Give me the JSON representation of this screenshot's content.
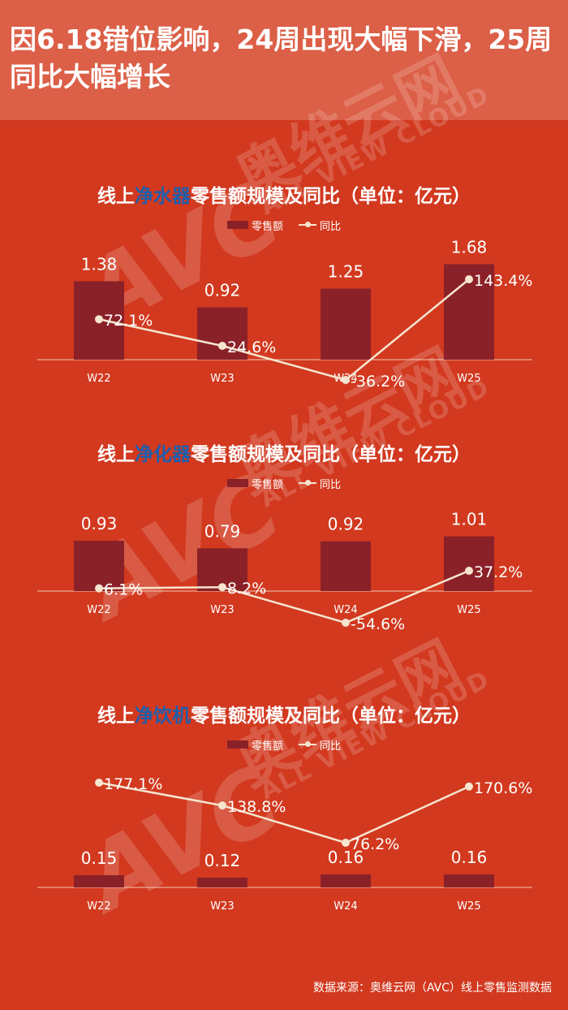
{
  "header": {
    "title": "因6.18错位影响，24周出现大幅下滑，25周同比大幅增长"
  },
  "watermark": {
    "brand": "AVC",
    "cn": "奥维云网",
    "en": "ALL VIEW CLOUD"
  },
  "legend": {
    "bar_label": "零售额",
    "line_label": "同比"
  },
  "colors": {
    "background": "#d2391f",
    "header": "#dc5f47",
    "bar": "#8b2128",
    "line": "#f6e5cf",
    "highlight": "#1d5fae"
  },
  "source": "数据来源：奥维云网（AVC）线上零售监测数据",
  "chart_data": [
    {
      "type": "bar",
      "title_prefix": "线上",
      "title_highlight": "净水器",
      "title_suffix": "零售额规模及同比（单位：亿元）",
      "categories": [
        "W22",
        "W23",
        "W24",
        "W25"
      ],
      "series": [
        {
          "name": "零售额",
          "type": "bar",
          "values": [
            1.38,
            0.92,
            1.25,
            1.68
          ],
          "labels": [
            "1.38",
            "0.92",
            "1.25",
            "1.68"
          ]
        },
        {
          "name": "同比",
          "type": "line",
          "values": [
            72.1,
            24.6,
            -36.2,
            143.4
          ],
          "labels": [
            "72.1%",
            "24.6%",
            "-36.2%",
            "143.4%"
          ]
        }
      ],
      "bar_max": 2.0,
      "line_range": [
        -40,
        150
      ]
    },
    {
      "type": "bar",
      "title_prefix": "线上",
      "title_highlight": "净化器",
      "title_suffix": "零售额规模及同比（单位：亿元）",
      "categories": [
        "W22",
        "W23",
        "W24",
        "W25"
      ],
      "series": [
        {
          "name": "零售额",
          "type": "bar",
          "values": [
            0.93,
            0.79,
            0.92,
            1.01
          ],
          "labels": [
            "0.93",
            "0.79",
            "0.92",
            "1.01"
          ]
        },
        {
          "name": "同比",
          "type": "line",
          "values": [
            6.1,
            8.2,
            -54.6,
            37.2
          ],
          "labels": [
            "6.1%",
            "8.2%",
            "-54.6%",
            "37.2%"
          ]
        }
      ],
      "bar_max": 1.5,
      "line_range": [
        -60,
        40
      ]
    },
    {
      "type": "bar",
      "title_prefix": "线上",
      "title_highlight": "净饮机",
      "title_suffix": "零售额规模及同比（单位：亿元）",
      "categories": [
        "W22",
        "W23",
        "W24",
        "W25"
      ],
      "series": [
        {
          "name": "零售额",
          "type": "bar",
          "values": [
            0.15,
            0.12,
            0.16,
            0.16
          ],
          "labels": [
            "0.15",
            "0.12",
            "0.16",
            "0.16"
          ]
        },
        {
          "name": "同比",
          "type": "line",
          "values": [
            177.1,
            138.8,
            76.2,
            170.6
          ],
          "labels": [
            "177.1%",
            "138.8%",
            "76.2%",
            "170.6%"
          ]
        }
      ],
      "bar_max": 1.0,
      "line_range": [
        70,
        180
      ]
    }
  ]
}
